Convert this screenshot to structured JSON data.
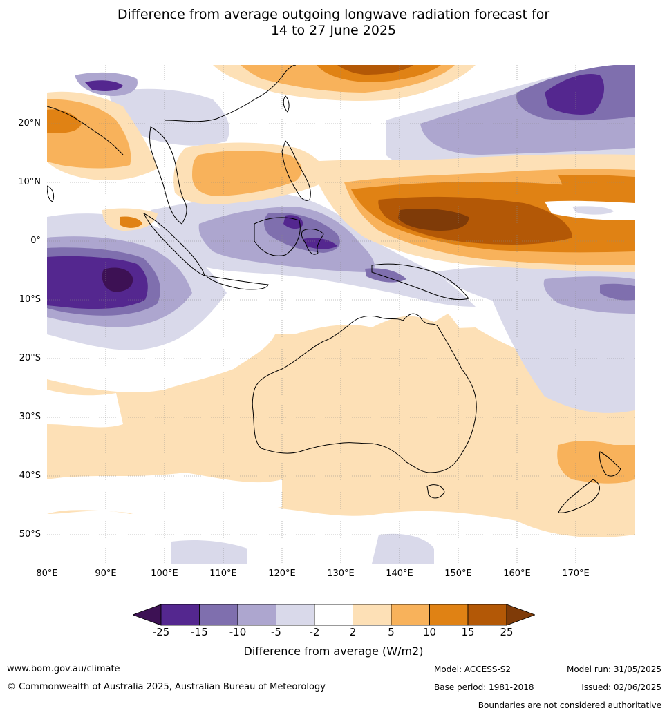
{
  "title": {
    "line1": "Difference from average outgoing longwave radiation forecast for",
    "line2": "14 to 27 June 2025"
  },
  "map": {
    "lon_range": [
      80,
      180
    ],
    "lat_range": [
      -55,
      30
    ],
    "lat_labels": [
      "20°N",
      "10°N",
      "0°",
      "10°S",
      "20°S",
      "30°S",
      "40°S",
      "50°S"
    ],
    "lat_values": [
      20,
      10,
      0,
      -10,
      -20,
      -30,
      -40,
      -50
    ],
    "lon_labels": [
      "80°E",
      "90°E",
      "100°E",
      "110°E",
      "120°E",
      "130°E",
      "140°E",
      "150°E",
      "160°E",
      "170°E"
    ],
    "lon_values": [
      80,
      90,
      100,
      110,
      120,
      130,
      140,
      150,
      160,
      170
    ]
  },
  "colorbar": {
    "ticks": [
      "-25",
      "-15",
      "-10",
      "-5",
      "-2",
      "2",
      "5",
      "10",
      "15",
      "25"
    ],
    "colors": [
      "#3d1154",
      "#54278f",
      "#7f6fae",
      "#ada6cf",
      "#d9d9ea",
      "#ffffff",
      "#fde0b6",
      "#f8b25b",
      "#e08214",
      "#b35806",
      "#7f3b08"
    ],
    "label": "Difference from average (W/m2)"
  },
  "footer": {
    "website": "www.bom.gov.au/climate",
    "copyright": "© Commonwealth of Australia 2025, Australian Bureau of Meteorology",
    "model": "Model: ACCESS-S2",
    "base_period": "Base period: 1981-2018",
    "model_run": "Model run: 31/05/2025",
    "issued": "Issued: 02/06/2025",
    "disclaimer": "Boundaries are not considered authoritative"
  }
}
